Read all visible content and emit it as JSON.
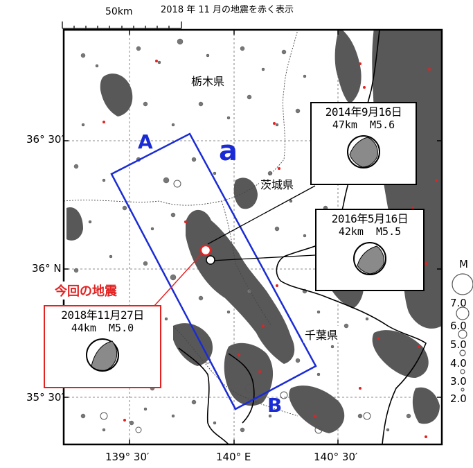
{
  "caption": "2018 年 11 月の地震を赤く表示",
  "scale_label": "50km",
  "lat_labels": [
    "36° 30′",
    "36° N",
    "35° 30′"
  ],
  "lon_labels": [
    "139° 30′",
    "140° E",
    "140° 30′"
  ],
  "prefectures": {
    "tochigi": "栃木県",
    "ibaraki": "茨城県",
    "chiba": "千葉県"
  },
  "region_label": "a",
  "cross_section": {
    "start": "A",
    "end": "B"
  },
  "current_quake_label": "今回の地震",
  "events": [
    {
      "date": "2018年11月27日",
      "detail": "44km  M5.0",
      "color": "#e32222"
    },
    {
      "date": "2016年5月16日",
      "detail": "42km  M5.5",
      "color": "#000000"
    },
    {
      "date": "2014年9月16日",
      "detail": "47km  M5.6",
      "color": "#000000"
    }
  ],
  "legend": {
    "title": "M",
    "magnitudes": [
      "7.0",
      "6.0",
      "5.0",
      "4.0",
      "3.0",
      "2.0"
    ]
  },
  "colors": {
    "quake_gray": "#555555",
    "highlight_red": "#e32222",
    "section_blue": "#1a2bd6"
  }
}
